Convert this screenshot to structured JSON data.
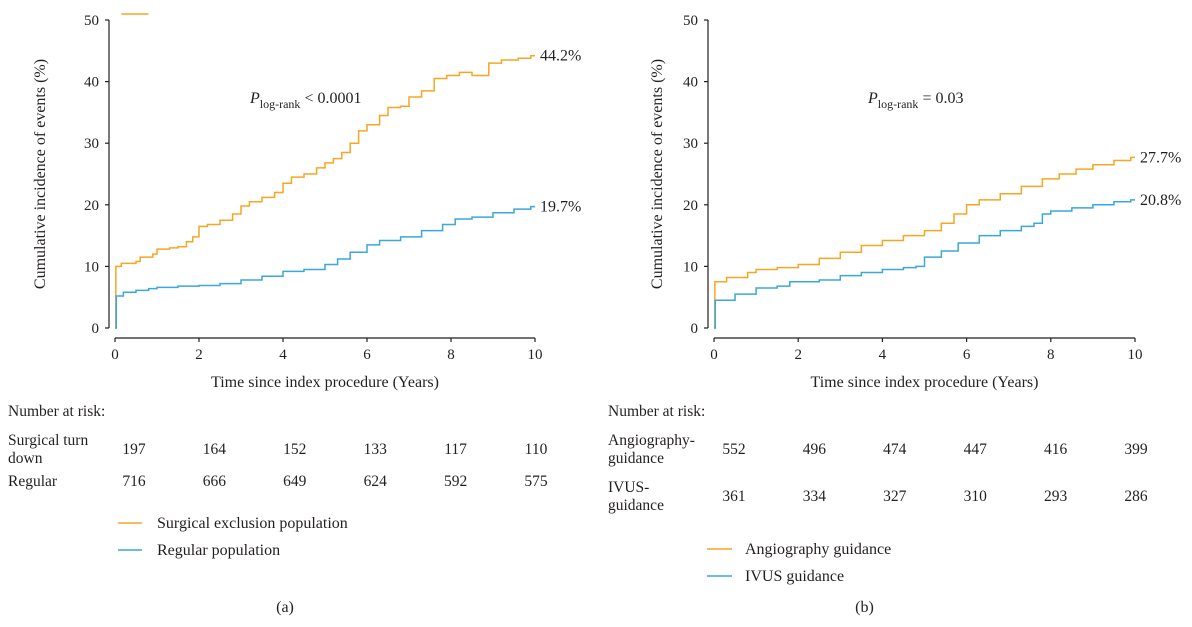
{
  "chart_data": [
    {
      "type": "line",
      "panel_label": "(a)",
      "ylabel": "Cumulative incidence of events (%)",
      "xlabel": "Time since index procedure (Years)",
      "xlim": [
        0,
        10
      ],
      "ylim": [
        0,
        50
      ],
      "xticks": [
        0,
        2,
        4,
        6,
        8,
        10
      ],
      "yticks": [
        0,
        10,
        20,
        30,
        40,
        50
      ],
      "pvalue": {
        "prefix": "P",
        "subscript": "log-rank",
        "suffix": " < 0.0001"
      },
      "series": [
        {
          "name": "Surgical exclusion population",
          "color": "#f5a623",
          "end_label": "44.2%",
          "points": [
            [
              0,
              0
            ],
            [
              0.02,
              10
            ],
            [
              0.15,
              10.5
            ],
            [
              0.5,
              10.8
            ],
            [
              0.6,
              11.5
            ],
            [
              0.9,
              12
            ],
            [
              1.0,
              12.8
            ],
            [
              1.3,
              13
            ],
            [
              1.5,
              13.2
            ],
            [
              1.7,
              14
            ],
            [
              1.85,
              14.8
            ],
            [
              2.0,
              16.5
            ],
            [
              2.2,
              16.8
            ],
            [
              2.5,
              17.5
            ],
            [
              2.8,
              18.5
            ],
            [
              3.0,
              19.8
            ],
            [
              3.2,
              20.5
            ],
            [
              3.5,
              21.2
            ],
            [
              3.8,
              22
            ],
            [
              4.0,
              23.5
            ],
            [
              4.2,
              24.5
            ],
            [
              4.5,
              25
            ],
            [
              4.8,
              26
            ],
            [
              5.0,
              26.8
            ],
            [
              5.2,
              27.5
            ],
            [
              5.4,
              28.5
            ],
            [
              5.6,
              30
            ],
            [
              5.8,
              32
            ],
            [
              6.0,
              33
            ],
            [
              6.3,
              34.5
            ],
            [
              6.5,
              35.8
            ],
            [
              6.8,
              36
            ],
            [
              7.0,
              37.5
            ],
            [
              7.3,
              38.5
            ],
            [
              7.6,
              40.5
            ],
            [
              7.9,
              41
            ],
            [
              8.2,
              41.5
            ],
            [
              8.5,
              41
            ],
            [
              8.8,
              41
            ],
            [
              8.9,
              43
            ],
            [
              9.2,
              43.5
            ],
            [
              9.6,
              43.8
            ],
            [
              9.9,
              44.2
            ]
          ]
        },
        {
          "name": "Regular population",
          "color": "#3aa8d8",
          "end_label": "19.7%",
          "points": [
            [
              0,
              0
            ],
            [
              0.03,
              5.2
            ],
            [
              0.2,
              5.8
            ],
            [
              0.5,
              6.1
            ],
            [
              0.8,
              6.4
            ],
            [
              1.0,
              6.6
            ],
            [
              1.5,
              6.8
            ],
            [
              2.0,
              6.9
            ],
            [
              2.5,
              7.2
            ],
            [
              3.0,
              7.8
            ],
            [
              3.5,
              8.4
            ],
            [
              4.0,
              9.2
            ],
            [
              4.5,
              9.5
            ],
            [
              5.0,
              10.3
            ],
            [
              5.3,
              11.2
            ],
            [
              5.6,
              12.3
            ],
            [
              6.0,
              13.5
            ],
            [
              6.3,
              14.2
            ],
            [
              6.8,
              14.8
            ],
            [
              7.3,
              15.8
            ],
            [
              7.8,
              16.8
            ],
            [
              8.1,
              17.7
            ],
            [
              8.5,
              18
            ],
            [
              9.0,
              18.7
            ],
            [
              9.5,
              19.3
            ],
            [
              9.9,
              19.7
            ]
          ]
        }
      ],
      "risk_table": {
        "heading": "Number at risk:",
        "rows": [
          {
            "label_line1": "Surgical turn",
            "label_line2": "down",
            "values": [
              "197",
              "164",
              "152",
              "133",
              "117",
              "110"
            ]
          },
          {
            "label_line1": "Regular",
            "label_line2": "",
            "values": [
              "716",
              "666",
              "649",
              "624",
              "592",
              "575"
            ]
          }
        ]
      }
    },
    {
      "type": "line",
      "panel_label": "(b)",
      "ylabel": "Cumulative incidence of events (%)",
      "xlabel": "Time since index procedure (Years)",
      "xlim": [
        0,
        10
      ],
      "ylim": [
        0,
        50
      ],
      "xticks": [
        0,
        2,
        4,
        6,
        8,
        10
      ],
      "yticks": [
        0,
        10,
        20,
        30,
        40,
        50
      ],
      "pvalue": {
        "prefix": "P",
        "subscript": "log-rank",
        "suffix": " = 0.03"
      },
      "series": [
        {
          "name": "Angiography guidance",
          "color": "#f5a623",
          "end_label": "27.7%",
          "points": [
            [
              0,
              0
            ],
            [
              0.02,
              7.5
            ],
            [
              0.3,
              8.2
            ],
            [
              0.8,
              9
            ],
            [
              1.0,
              9.5
            ],
            [
              1.5,
              9.8
            ],
            [
              2.0,
              10.3
            ],
            [
              2.5,
              11.3
            ],
            [
              3.0,
              12.3
            ],
            [
              3.5,
              13.4
            ],
            [
              4.0,
              14.2
            ],
            [
              4.5,
              15
            ],
            [
              5.0,
              15.8
            ],
            [
              5.4,
              17
            ],
            [
              5.7,
              18.5
            ],
            [
              6.0,
              20
            ],
            [
              6.3,
              20.8
            ],
            [
              6.8,
              21.8
            ],
            [
              7.3,
              23
            ],
            [
              7.8,
              24.2
            ],
            [
              8.2,
              25
            ],
            [
              8.6,
              25.8
            ],
            [
              9.0,
              26.5
            ],
            [
              9.5,
              27.2
            ],
            [
              9.9,
              27.7
            ]
          ]
        },
        {
          "name": "IVUS guidance",
          "color": "#3aa8d8",
          "end_label": "20.8%",
          "points": [
            [
              0,
              0
            ],
            [
              0.03,
              4.5
            ],
            [
              0.5,
              5.5
            ],
            [
              1.0,
              6.5
            ],
            [
              1.5,
              6.8
            ],
            [
              1.8,
              7.5
            ],
            [
              2.5,
              7.8
            ],
            [
              3.0,
              8.5
            ],
            [
              3.5,
              9
            ],
            [
              4.0,
              9.5
            ],
            [
              4.5,
              9.8
            ],
            [
              4.8,
              10
            ],
            [
              5.0,
              11.5
            ],
            [
              5.4,
              12.5
            ],
            [
              5.8,
              13.8
            ],
            [
              6.3,
              15
            ],
            [
              6.8,
              15.8
            ],
            [
              7.3,
              16.5
            ],
            [
              7.6,
              17
            ],
            [
              7.8,
              18.5
            ],
            [
              8.0,
              19
            ],
            [
              8.5,
              19.5
            ],
            [
              9.0,
              20
            ],
            [
              9.5,
              20.5
            ],
            [
              9.9,
              20.8
            ]
          ]
        }
      ],
      "risk_table": {
        "heading": "Number at risk:",
        "rows": [
          {
            "label_line1": "Angiography-",
            "label_line2": "guidance",
            "values": [
              "552",
              "496",
              "474",
              "447",
              "416",
              "399"
            ]
          },
          {
            "label_line1": "IVUS-",
            "label_line2": "guidance",
            "values": [
              "361",
              "334",
              "327",
              "310",
              "293",
              "286"
            ]
          }
        ]
      }
    }
  ]
}
